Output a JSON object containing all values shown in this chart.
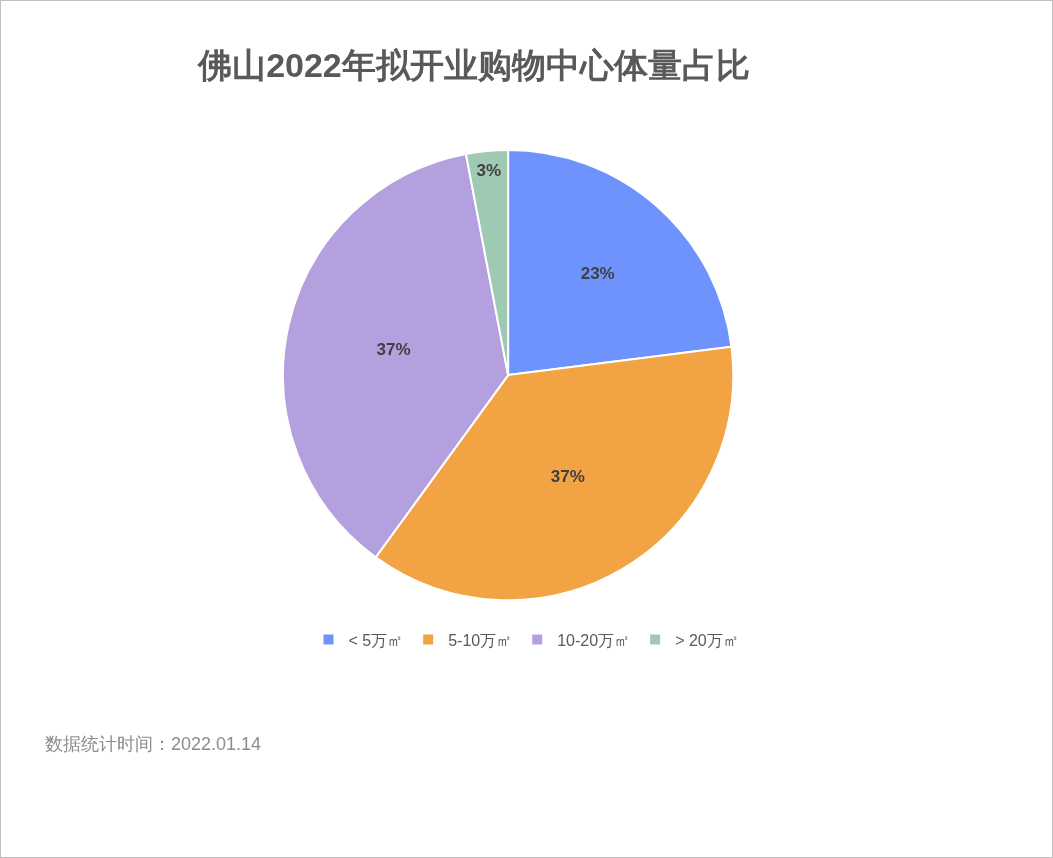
{
  "chart_data": {
    "type": "pie",
    "title": "佛山2022年拟开业购物中心体量占比",
    "categories": [
      "< 5万㎡",
      "5-10万㎡",
      "10-20万㎡",
      "> 20万㎡"
    ],
    "values": [
      23,
      37,
      37,
      3
    ],
    "value_labels": [
      "23%",
      "37%",
      "37%",
      "3%"
    ],
    "colors": [
      "#6e93fc",
      "#f2a444",
      "#b4a0de",
      "#a0c9b4"
    ],
    "legend": "bottom",
    "annotations": [
      "数据统计时间：2022.01.14"
    ]
  }
}
